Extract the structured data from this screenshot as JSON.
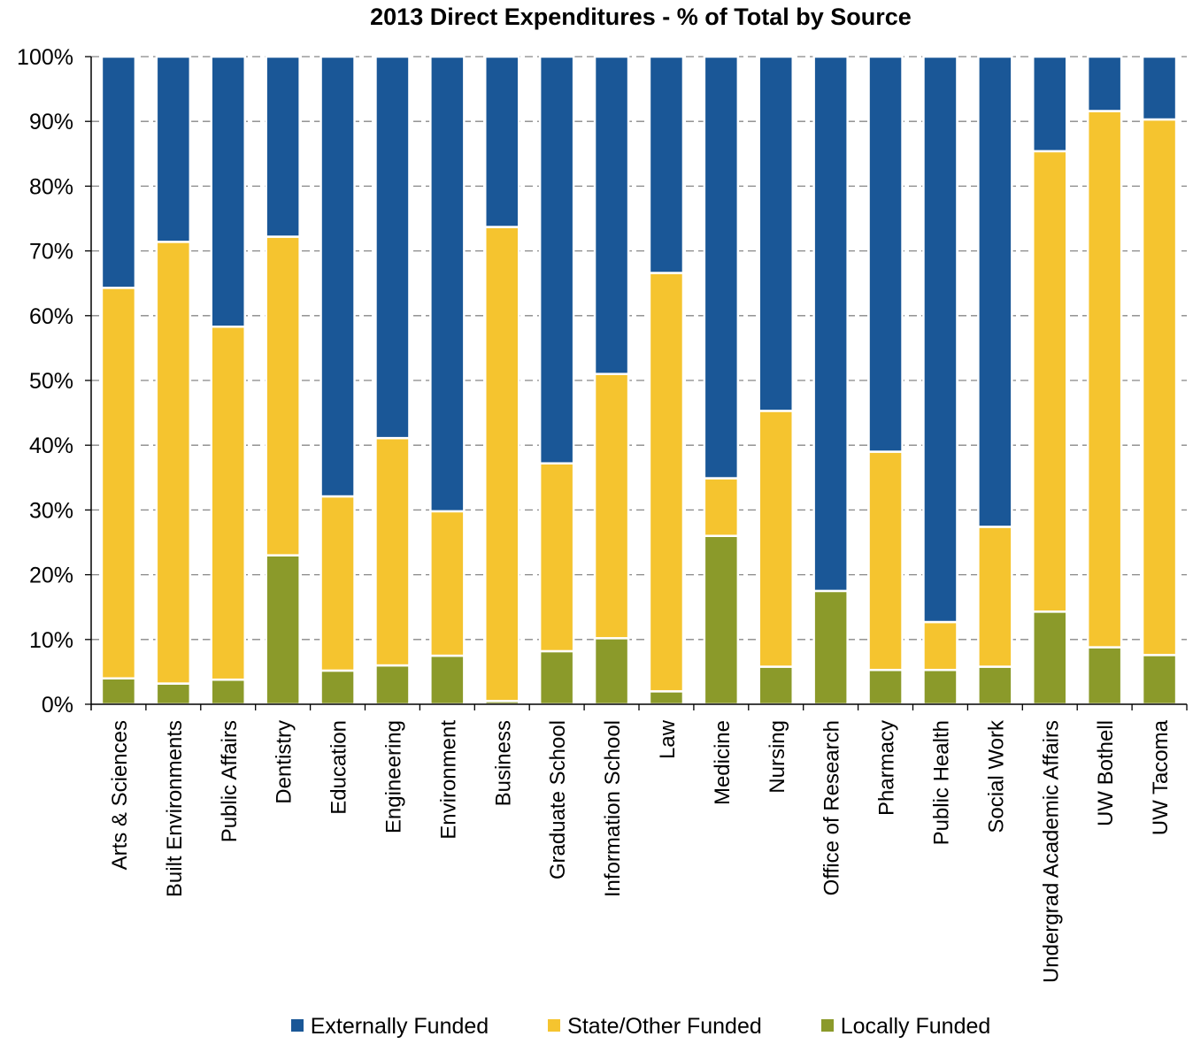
{
  "chart_data": {
    "type": "bar",
    "stacked": true,
    "title": "2013 Direct Expenditures - % of Total by Source",
    "xlabel": "",
    "ylabel": "",
    "ylim": [
      0,
      100
    ],
    "yticks": [
      "0%",
      "10%",
      "20%",
      "30%",
      "40%",
      "50%",
      "60%",
      "70%",
      "80%",
      "90%",
      "100%"
    ],
    "grid": true,
    "legend_position": "bottom",
    "categories": [
      "Arts & Sciences",
      "Built Environments",
      "Public Affairs",
      "Dentistry",
      "Education",
      "Engineering",
      "Environment",
      "Business",
      "Graduate School",
      "Information School",
      "Law",
      "Medicine",
      "Nursing",
      "Office of Research",
      "Pharmacy",
      "Public Health",
      "Social Work",
      "Undergrad Academic Affairs",
      "UW Bothell",
      "UW Tacoma"
    ],
    "series": [
      {
        "name": "Locally Funded",
        "color": "#8b9a2a",
        "values": [
          4,
          3.2,
          3.8,
          23,
          5.2,
          6,
          7.5,
          0.5,
          8.2,
          10.2,
          2,
          26,
          5.8,
          17.5,
          5.3,
          5.3,
          5.8,
          14.3,
          8.8,
          7.6
        ]
      },
      {
        "name": "State/Other Funded",
        "color": "#f5c42f",
        "values": [
          60.3,
          68.2,
          54.5,
          49.2,
          26.9,
          35.1,
          22.3,
          73.2,
          29,
          40.8,
          64.6,
          8.9,
          39.5,
          0,
          33.7,
          7.4,
          21.6,
          71.1,
          82.8,
          82.7
        ]
      },
      {
        "name": "Externally Funded",
        "color": "#1a5797",
        "values": [
          35.7,
          28.6,
          41.7,
          27.8,
          67.9,
          58.9,
          70.2,
          26.3,
          62.8,
          49,
          33.4,
          65.1,
          54.7,
          82.5,
          61,
          87.3,
          72.6,
          14.6,
          8.4,
          9.7
        ]
      }
    ],
    "legend": [
      "Externally Funded",
      "State/Other Funded",
      "Locally Funded"
    ]
  }
}
